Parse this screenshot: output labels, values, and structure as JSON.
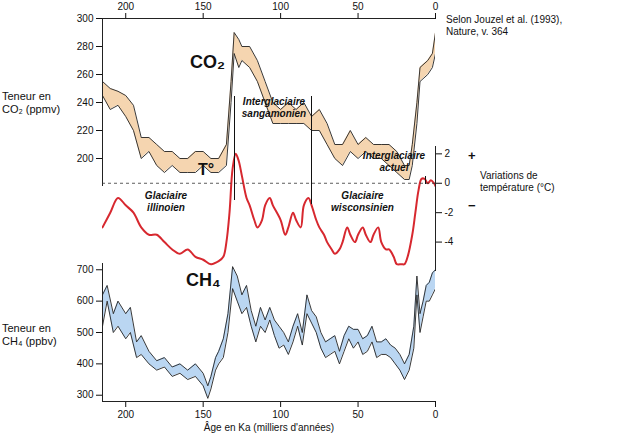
{
  "chart_data": [
    {
      "type": "area",
      "ylabel": "Teneur en CO₂ (ppmv)",
      "annotations": [
        "Selon Jouzel et al. (1993), Nature, v. 364"
      ],
      "x": [
        215,
        210,
        205,
        200,
        195,
        190,
        185,
        180,
        175,
        170,
        165,
        160,
        155,
        150,
        145,
        140,
        135,
        132,
        130,
        127,
        125,
        120,
        115,
        110,
        105,
        100,
        95,
        90,
        85,
        80,
        75,
        70,
        65,
        60,
        55,
        50,
        45,
        40,
        35,
        30,
        25,
        20,
        17,
        15,
        12,
        10,
        5,
        2,
        0
      ],
      "series": [
        {
          "name": "CO₂",
          "color": "#f5d5b0",
          "values": [
            [
              245,
              255
            ],
            [
              235,
              250
            ],
            [
              238,
              248
            ],
            [
              230,
              245
            ],
            [
              220,
              238
            ],
            [
              200,
              215
            ],
            [
              205,
              215
            ],
            [
              195,
              210
            ],
            [
              190,
              205
            ],
            [
              195,
              205
            ],
            [
              190,
              200
            ],
            [
              190,
              200
            ],
            [
              190,
              205
            ],
            [
              195,
              205
            ],
            [
              190,
              200
            ],
            [
              190,
              200
            ],
            [
              195,
              210
            ],
            [
              240,
              255
            ],
            [
              275,
              290
            ],
            [
              265,
              285
            ],
            [
              270,
              280
            ],
            [
              265,
              280
            ],
            [
              255,
              270
            ],
            [
              240,
              255
            ],
            [
              225,
              240
            ],
            [
              225,
              235
            ],
            [
              225,
              240
            ],
            [
              225,
              235
            ],
            [
              225,
              240
            ],
            [
              220,
              230
            ],
            [
              220,
              235
            ],
            [
              210,
              225
            ],
            [
              200,
              210
            ],
            [
              195,
              210
            ],
            [
              205,
              220
            ],
            [
              200,
              210
            ],
            [
              205,
              215
            ],
            [
              200,
              210
            ],
            [
              200,
              210
            ],
            [
              195,
              210
            ],
            [
              190,
              205
            ],
            [
              185,
              195
            ],
            [
              185,
              195
            ],
            [
              195,
              210
            ],
            [
              225,
              240
            ],
            [
              255,
              265
            ],
            [
              260,
              270
            ],
            [
              265,
              275
            ],
            [
              275,
              290
            ]
          ]
        }
      ],
      "xlim": [
        215,
        0
      ],
      "xticks": [
        200,
        150,
        100,
        50,
        0
      ],
      "ylim": [
        180,
        300
      ],
      "yticks": [
        200,
        220,
        240,
        260,
        280,
        300
      ]
    },
    {
      "type": "line",
      "ylabel": "Variations de température (°C)",
      "annotations": [
        "Glaciaire illinoien",
        "Interglaciaire sangamonien",
        "Glaciaire wisconsinien",
        "Interglaciaire actuel",
        "+",
        "−"
      ],
      "x": [
        215,
        210,
        205,
        200,
        195,
        190,
        185,
        180,
        175,
        170,
        165,
        160,
        155,
        150,
        145,
        140,
        137,
        135,
        133,
        131,
        129,
        127,
        125,
        122,
        120,
        117,
        115,
        112,
        110,
        107,
        105,
        100,
        97,
        95,
        92,
        90,
        87,
        85,
        82,
        80,
        77,
        75,
        72,
        70,
        67,
        65,
        62,
        60,
        57,
        55,
        52,
        50,
        47,
        45,
        42,
        40,
        37,
        35,
        32,
        30,
        27,
        25,
        22,
        20,
        18,
        15,
        13,
        11,
        9,
        7,
        5,
        3,
        1,
        0
      ],
      "series": [
        {
          "name": "T°",
          "color": "#d7282f",
          "values": [
            -3.0,
            -2.0,
            -1.0,
            -1.5,
            -2.0,
            -3.0,
            -3.5,
            -3.5,
            -4.0,
            -4.5,
            -4.8,
            -4.5,
            -5.0,
            -5.2,
            -5.5,
            -5.3,
            -5.0,
            -4.0,
            -2.0,
            1.0,
            2.0,
            1.5,
            0.5,
            -1.0,
            -1.5,
            -2.5,
            -3.0,
            -2.5,
            -1.5,
            -1.0,
            -1.5,
            -2.5,
            -3.5,
            -3.0,
            -2.0,
            -2.5,
            -3.0,
            -1.5,
            -1.0,
            -1.5,
            -2.5,
            -3.0,
            -3.5,
            -4.0,
            -4.5,
            -4.8,
            -4.5,
            -4.0,
            -3.0,
            -3.5,
            -4.0,
            -3.5,
            -3.0,
            -3.5,
            -4.0,
            -3.5,
            -3.0,
            -4.0,
            -4.5,
            -4.5,
            -5.0,
            -5.5,
            -5.5,
            -5.5,
            -5.0,
            -3.5,
            -2.0,
            -0.5,
            0.3,
            0.3,
            0.0,
            0.2,
            0.0,
            -0.2
          ]
        }
      ],
      "reference_lines": [
        0
      ],
      "xlim": [
        215,
        0
      ],
      "ylim": [
        -6,
        2.5
      ],
      "yticks": [
        -4,
        -2,
        0,
        2
      ],
      "tick_labels": "y"
    },
    {
      "type": "area",
      "ylabel": "Teneur en CH₄ (ppbv)",
      "xlabel": "Âge en Ka (milliers d'années)",
      "x": [
        215,
        212,
        208,
        205,
        200,
        197,
        193,
        190,
        185,
        180,
        175,
        170,
        165,
        160,
        155,
        150,
        147,
        145,
        142,
        140,
        137,
        134,
        131,
        128,
        125,
        122,
        119,
        116,
        113,
        110,
        107,
        104,
        101,
        98,
        95,
        92,
        89,
        86,
        83,
        80,
        77,
        74,
        71,
        68,
        65,
        62,
        59,
        56,
        53,
        50,
        47,
        44,
        41,
        38,
        35,
        32,
        29,
        26,
        23,
        20,
        17,
        14,
        12,
        10,
        8,
        6,
        4,
        2,
        0
      ],
      "series": [
        {
          "name": "CH₄",
          "color": "#bad6f2",
          "values": [
            [
              520,
              620
            ],
            [
              600,
              650
            ],
            [
              500,
              560
            ],
            [
              520,
              600
            ],
            [
              480,
              560
            ],
            [
              500,
              580
            ],
            [
              420,
              470
            ],
            [
              430,
              490
            ],
            [
              400,
              440
            ],
            [
              380,
              410
            ],
            [
              390,
              420
            ],
            [
              360,
              390
            ],
            [
              370,
              400
            ],
            [
              350,
              380
            ],
            [
              360,
              400
            ],
            [
              330,
              370
            ],
            [
              290,
              330
            ],
            [
              320,
              360
            ],
            [
              380,
              420
            ],
            [
              400,
              440
            ],
            [
              420,
              480
            ],
            [
              500,
              560
            ],
            [
              640,
              710
            ],
            [
              600,
              680
            ],
            [
              560,
              620
            ],
            [
              580,
              650
            ],
            [
              520,
              570
            ],
            [
              470,
              520
            ],
            [
              520,
              580
            ],
            [
              500,
              540
            ],
            [
              540,
              580
            ],
            [
              490,
              540
            ],
            [
              450,
              520
            ],
            [
              460,
              500
            ],
            [
              430,
              470
            ],
            [
              470,
              520
            ],
            [
              520,
              560
            ],
            [
              460,
              500
            ],
            [
              560,
              620
            ],
            [
              530,
              570
            ],
            [
              500,
              550
            ],
            [
              450,
              500
            ],
            [
              420,
              470
            ],
            [
              430,
              480
            ],
            [
              440,
              490
            ],
            [
              400,
              440
            ],
            [
              440,
              490
            ],
            [
              480,
              520
            ],
            [
              450,
              510
            ],
            [
              470,
              510
            ],
            [
              430,
              480
            ],
            [
              440,
              490
            ],
            [
              470,
              520
            ],
            [
              420,
              470
            ],
            [
              430,
              470
            ],
            [
              430,
              480
            ],
            [
              420,
              460
            ],
            [
              400,
              450
            ],
            [
              380,
              430
            ],
            [
              350,
              400
            ],
            [
              380,
              430
            ],
            [
              450,
              520
            ],
            [
              620,
              680
            ],
            [
              500,
              560
            ],
            [
              550,
              600
            ],
            [
              600,
              650
            ],
            [
              600,
              660
            ],
            [
              620,
              690
            ],
            [
              640,
              700
            ]
          ]
        }
      ],
      "xlim": [
        215,
        0
      ],
      "xticks": [
        200,
        150,
        100,
        50,
        0
      ],
      "ylim": [
        280,
        720
      ],
      "yticks": [
        300,
        400,
        500,
        600,
        700
      ]
    }
  ]
}
